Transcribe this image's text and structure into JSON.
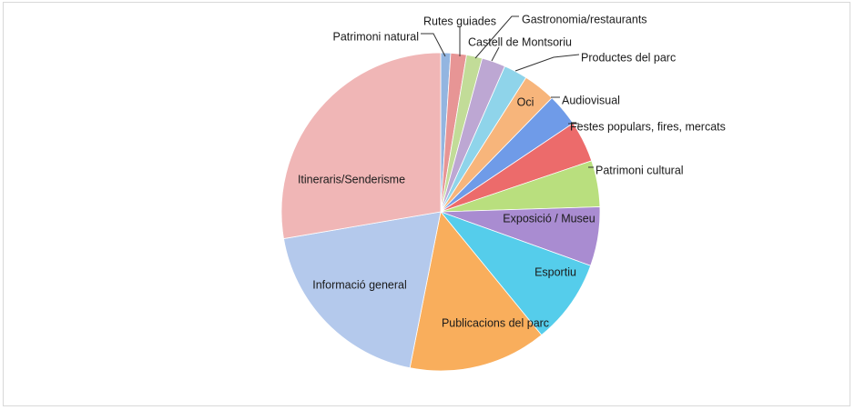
{
  "chart_data": {
    "type": "pie",
    "title": "",
    "slices": [
      {
        "label": "Patrimoni natural",
        "value": 1.0,
        "color": "#93b5e0"
      },
      {
        "label": "Rutes guiades",
        "value": 1.6,
        "color": "#e79595"
      },
      {
        "label": "Gastronomia/restaurants",
        "value": 1.6,
        "color": "#c2dc98"
      },
      {
        "label": "Castell de Montsoriu",
        "value": 2.4,
        "color": "#bda7d3"
      },
      {
        "label": "Productes del parc",
        "value": 2.4,
        "color": "#8fd4ea"
      },
      {
        "label": "Oci",
        "value": 3.3,
        "color": "#f7b57b"
      },
      {
        "label": "Audiovisual",
        "value": 3.3,
        "color": "#6f9be8"
      },
      {
        "label": "Festes populars, fires, mercats",
        "value": 4.2,
        "color": "#ec6b6b"
      },
      {
        "label": "Patrimoni cultural",
        "value": 4.7,
        "color": "#b9df7e"
      },
      {
        "label": "Exposició / Museu",
        "value": 6.0,
        "color": "#a98cd1"
      },
      {
        "label": "Esportiu",
        "value": 8.6,
        "color": "#55cdeb"
      },
      {
        "label": "Publicacions del parc",
        "value": 14.0,
        "color": "#f9ae5c"
      },
      {
        "label": "Informació general",
        "value": 19.2,
        "color": "#b4c9ec"
      },
      {
        "label": "Itineraris/Senderisme",
        "value": 27.7,
        "color": "#f0b6b6"
      }
    ],
    "start_angle_deg": 0,
    "direction": "clockwise",
    "legend": "none",
    "labels_inside": [
      "Oci",
      "Exposició / Museu",
      "Esportiu",
      "Publicacions del parc",
      "Informació general",
      "Itineraris/Senderisme"
    ]
  }
}
